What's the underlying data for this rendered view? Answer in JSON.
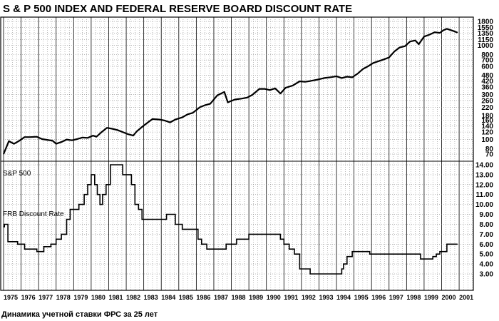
{
  "title": "S & P 500 INDEX AND FEDERAL RESERVE BOARD DISCOUNT RATE",
  "caption": "Динамика учетной ставки ФРС за 25 лет",
  "chart_data": [
    {
      "type": "line",
      "name": "S&P 500",
      "series_label": "S&P 500",
      "y_scale": "log",
      "ylim": [
        70,
        1800
      ],
      "y_ticks": [
        "1800",
        "1550",
        "1350",
        "1150",
        "1000",
        "800",
        "700",
        "600",
        "480",
        "420",
        "360",
        "300",
        "260",
        "220",
        "180",
        "160",
        "140",
        "120",
        "100",
        "80",
        "70"
      ],
      "x": [
        1975.0,
        1975.3,
        1975.6,
        1975.9,
        1976.2,
        1976.5,
        1976.9,
        1977.2,
        1977.5,
        1977.8,
        1978.0,
        1978.3,
        1978.6,
        1978.9,
        1979.2,
        1979.5,
        1979.8,
        1980.1,
        1980.3,
        1980.6,
        1980.9,
        1981.2,
        1981.5,
        1981.8,
        1982.1,
        1982.4,
        1982.6,
        1982.9,
        1983.2,
        1983.5,
        1983.9,
        1984.2,
        1984.5,
        1984.8,
        1985.2,
        1985.5,
        1985.8,
        1986.2,
        1986.5,
        1986.8,
        1987.2,
        1987.6,
        1987.8,
        1988.2,
        1988.6,
        1988.9,
        1989.2,
        1989.6,
        1989.9,
        1990.2,
        1990.5,
        1990.8,
        1991.1,
        1991.5,
        1991.9,
        1992.2,
        1992.5,
        1992.9,
        1993.3,
        1993.7,
        1994.0,
        1994.3,
        1994.6,
        1994.9,
        1995.2,
        1995.5,
        1995.8,
        1996.1,
        1996.4,
        1996.7,
        1997.0,
        1997.3,
        1997.6,
        1997.9,
        1998.2,
        1998.5,
        1998.7,
        1999.0,
        1999.3,
        1999.6,
        1999.9,
        2000.1,
        2000.3,
        2000.6,
        2000.9
      ],
      "y": [
        70,
        96,
        90,
        97,
        106,
        106,
        107,
        101,
        99,
        97,
        90,
        94,
        100,
        98,
        101,
        105,
        104,
        110,
        107,
        120,
        133,
        130,
        126,
        120,
        114,
        110,
        122,
        136,
        150,
        165,
        163,
        159,
        152,
        163,
        172,
        185,
        192,
        220,
        232,
        240,
        295,
        320,
        248,
        266,
        272,
        279,
        298,
        345,
        345,
        335,
        350,
        308,
        355,
        375,
        415,
        410,
        418,
        432,
        450,
        460,
        470,
        450,
        465,
        458,
        500,
        560,
        600,
        650,
        680,
        710,
        745,
        860,
        950,
        980,
        1100,
        1130,
        1030,
        1240,
        1300,
        1380,
        1360,
        1450,
        1500,
        1440,
        1370
      ]
    },
    {
      "type": "line",
      "name": "FRB Discount Rate",
      "series_label": "FRB  Discount  Rate",
      "step": true,
      "ylim": [
        3.0,
        14.0
      ],
      "y_ticks": [
        "14.00",
        "13.00",
        "12.00",
        "11.00",
        "10.00",
        "9.00",
        "8.00",
        "7.00",
        "6.00",
        "5.00",
        "4.00",
        "3.00"
      ],
      "x": [
        1975.0,
        1975.05,
        1975.25,
        1975.45,
        1975.8,
        1976.2,
        1976.9,
        1977.3,
        1977.7,
        1978.0,
        1978.3,
        1978.6,
        1978.8,
        1979.3,
        1979.6,
        1979.8,
        1980.0,
        1980.2,
        1980.35,
        1980.5,
        1980.65,
        1980.85,
        1981.1,
        1981.8,
        1982.3,
        1982.5,
        1982.7,
        1982.9,
        1984.3,
        1984.8,
        1985.2,
        1985.5,
        1986.1,
        1986.3,
        1986.6,
        1987.7,
        1988.3,
        1988.6,
        1989.0,
        1990.8,
        1991.0,
        1991.3,
        1991.6,
        1991.9,
        1992.5,
        1994.3,
        1994.4,
        1994.6,
        1994.9,
        1995.9,
        1998.8,
        1998.95,
        1999.5,
        1999.7,
        1999.9,
        2000.3,
        2000.9
      ],
      "y": [
        7.75,
        8.0,
        6.25,
        6.25,
        6.0,
        5.5,
        5.25,
        5.75,
        6.0,
        6.5,
        7.0,
        8.5,
        9.5,
        10.0,
        11.0,
        12.0,
        13.0,
        12.0,
        11.0,
        10.0,
        11.0,
        12.0,
        14.0,
        13.0,
        12.0,
        10.0,
        9.5,
        8.5,
        9.0,
        8.0,
        7.5,
        7.5,
        6.5,
        6.0,
        5.5,
        6.0,
        6.5,
        6.5,
        7.0,
        6.5,
        6.0,
        5.5,
        5.0,
        3.5,
        3.0,
        3.5,
        4.0,
        4.75,
        5.25,
        5.0,
        4.5,
        4.5,
        4.75,
        5.0,
        5.25,
        6.0,
        6.0
      ]
    }
  ],
  "x_axis": {
    "ticks": [
      "1975",
      "1976",
      "1977",
      "1978",
      "1979",
      "1980",
      "1981",
      "1982",
      "1983",
      "1984",
      "1985",
      "1986",
      "1987",
      "1988",
      "1989",
      "1990",
      "1991",
      "1992",
      "1993",
      "1994",
      "1995",
      "1996",
      "1997",
      "1998",
      "1999",
      "2000",
      "2001"
    ]
  }
}
